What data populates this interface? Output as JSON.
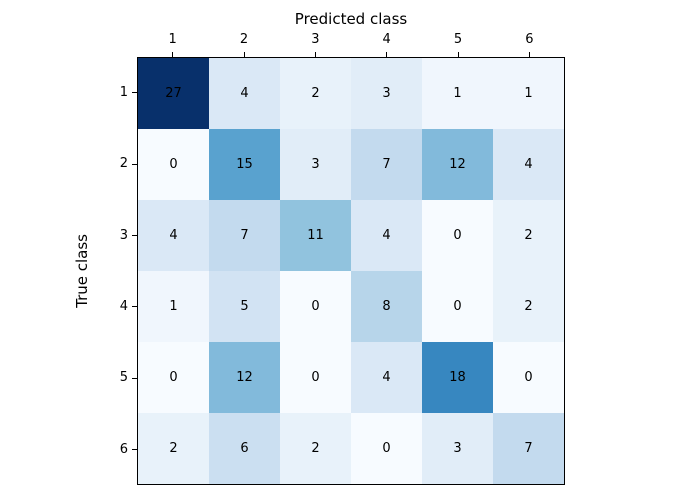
{
  "figure": {
    "background": "#ffffff",
    "axis_color": "#000000",
    "cell_text_color": "#000000"
  },
  "chart_data": {
    "type": "heatmap",
    "title": "",
    "xlabel": "Predicted class",
    "ylabel": "True class",
    "x_tick_labels": [
      "1",
      "2",
      "3",
      "4",
      "5",
      "6"
    ],
    "y_tick_labels": [
      "1",
      "2",
      "3",
      "4",
      "5",
      "6"
    ],
    "matrix": [
      [
        27,
        4,
        2,
        3,
        1,
        1
      ],
      [
        0,
        15,
        3,
        7,
        12,
        4
      ],
      [
        4,
        7,
        11,
        4,
        0,
        2
      ],
      [
        1,
        5,
        0,
        8,
        0,
        2
      ],
      [
        0,
        12,
        0,
        4,
        18,
        0
      ],
      [
        2,
        6,
        2,
        0,
        3,
        7
      ]
    ],
    "vmin": 0,
    "vmax": 27,
    "colormap": "Blues",
    "colormap_stops": [
      {
        "pos": 0.0,
        "hex": "#f7fbff"
      },
      {
        "pos": 0.125,
        "hex": "#deebf7"
      },
      {
        "pos": 0.25,
        "hex": "#c6dbef"
      },
      {
        "pos": 0.375,
        "hex": "#9ecae1"
      },
      {
        "pos": 0.5,
        "hex": "#6baed6"
      },
      {
        "pos": 0.625,
        "hex": "#4292c6"
      },
      {
        "pos": 0.75,
        "hex": "#2171b5"
      },
      {
        "pos": 0.875,
        "hex": "#08519c"
      },
      {
        "pos": 1.0,
        "hex": "#08306b"
      }
    ],
    "legend": "none",
    "grid": false
  }
}
